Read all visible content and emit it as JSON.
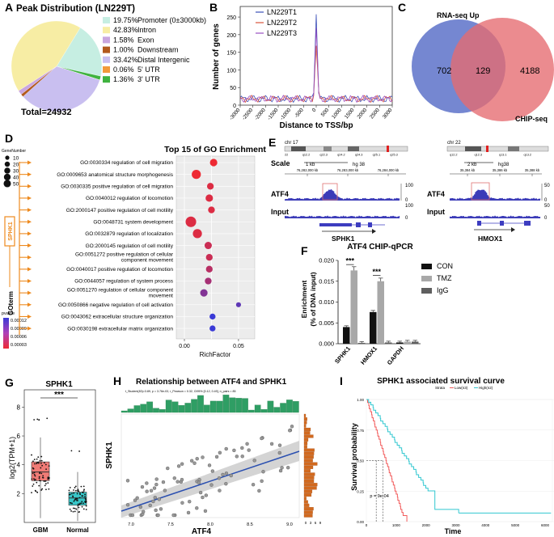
{
  "panels": {
    "A": "A",
    "B": "B",
    "C": "C",
    "D": "D",
    "E": "E",
    "F": "F",
    "G": "G",
    "H": "H",
    "I": "I"
  },
  "A": {
    "title": "Peak Distribution (LN229T)",
    "total": "Total=24932",
    "legend": [
      {
        "pct": "19.75%",
        "label": "Promoter (0±3000kb)",
        "color": "#c6eee2",
        "value": 19.75
      },
      {
        "pct": "42.83%",
        "label": "Intron",
        "color": "#f7eda4",
        "value": 42.83
      },
      {
        "pct": "1.58%",
        "label": "Exon",
        "color": "#c9a6df",
        "value": 1.58
      },
      {
        "pct": "1.00%",
        "label": "Downstream",
        "color": "#b25a1e",
        "value": 1.0
      },
      {
        "pct": "33.42%",
        "label": "Distal Intergenic",
        "color": "#c9bff0",
        "value": 33.42
      },
      {
        "pct": "0.06%",
        "label": "5' UTR",
        "color": "#f29a3a",
        "value": 0.06
      },
      {
        "pct": "1.36%",
        "label": "3' UTR",
        "color": "#3fb33f",
        "value": 1.36
      }
    ]
  },
  "B": {
    "ylabel": "Number of genes",
    "xlabel": "Distance to TSS/bp",
    "yticks": [
      "0",
      "50",
      "100",
      "150",
      "200",
      "250"
    ],
    "xticks": [
      "-3000",
      "-2500",
      "-2000",
      "-1500",
      "-1000",
      "-500",
      "0",
      "500",
      "1000",
      "1500",
      "2000",
      "2500",
      "3000"
    ],
    "legend": [
      {
        "label": "LN229T1",
        "color": "#3b4fb8"
      },
      {
        "label": "LN229T2",
        "color": "#d9533b"
      },
      {
        "label": "LN229T3",
        "color": "#9a4fc0"
      }
    ]
  },
  "C": {
    "label_left": "RNA-seq Up",
    "label_right": "CHIP-seq",
    "left_only": "702",
    "overlap": "129",
    "right_only": "4188",
    "left_color": "#5d72c9",
    "right_color": "#e66a6f"
  },
  "D": {
    "title": "Top 15 of GO Enrichment",
    "size_legend_title": "GeneNumber",
    "size_legend": [
      "10",
      "20",
      "30",
      "40",
      "50"
    ],
    "pvalue_title": "pvalue",
    "pvalue_ticks": [
      "0.00012",
      "0.00009",
      "0.00006",
      "0.00003"
    ],
    "xlabel": "RichFactor",
    "xticks": [
      "0.00",
      "0.05"
    ],
    "gene_box": "SPHK1",
    "goterm_label": "GOterm",
    "terms": [
      {
        "label": "GO:0030334 regulation of cell migration",
        "rich": 0.027,
        "genes": 22,
        "p": 2e-05
      },
      {
        "label": "GO:0009653 anatomical structure morphogenesis",
        "rich": 0.011,
        "genes": 38,
        "p": 2e-05
      },
      {
        "label": "GO:0030335 positive regulation of cell migration",
        "rich": 0.024,
        "genes": 17,
        "p": 3e-05
      },
      {
        "label": "GO:0040012 regulation of locomotion",
        "rich": 0.023,
        "genes": 22,
        "p": 3e-05
      },
      {
        "label": "GO:2000147 positive regulation of cell motility",
        "rich": 0.025,
        "genes": 17,
        "p": 3e-05
      },
      {
        "label": "GO:0048731 system development",
        "rich": 0.006,
        "genes": 55,
        "p": 3e-05
      },
      {
        "label": "GO:0032879 regulation of localization",
        "rich": 0.012,
        "genes": 38,
        "p": 3e-05
      },
      {
        "label": "GO:2000145 regulation of cell motility",
        "rich": 0.022,
        "genes": 21,
        "p": 4e-05
      },
      {
        "label": "GO:0051272 positive regulation of cellular component movement",
        "rich": 0.023,
        "genes": 17,
        "p": 4e-05
      },
      {
        "label": "GO:0040017 positive regulation of locomotion",
        "rich": 0.023,
        "genes": 17,
        "p": 5e-05
      },
      {
        "label": "GO:0044057 regulation of system process",
        "rich": 0.022,
        "genes": 17,
        "p": 6e-05
      },
      {
        "label": "GO:0051270 regulation of cellular component movement",
        "rich": 0.018,
        "genes": 22,
        "p": 8e-05
      },
      {
        "label": "GO:0050866 negative regulation of cell activation",
        "rich": 0.05,
        "genes": 7,
        "p": 0.0001
      },
      {
        "label": "GO:0043062 extracellular structure organization",
        "rich": 0.026,
        "genes": 12,
        "p": 0.00012
      },
      {
        "label": "GO:0030198 extracellular matrix organization",
        "rich": 0.026,
        "genes": 12,
        "p": 0.00012
      }
    ]
  },
  "E": {
    "left": {
      "chr": "chr 17",
      "bands": [
        "22",
        "q12.2",
        "q22.3",
        "q24.2",
        "q24.3",
        "q25.1",
        "q25.3"
      ],
      "scale_label": "Scale",
      "scale_bar": "1 kb",
      "genome": "hg 38",
      "coords": [
        "76,282,000 kb",
        "76,283,000 kb",
        "76,284,000 kb"
      ],
      "track1": "ATF4",
      "track2": "Input",
      "t1max": "100",
      "t1min": "0",
      "t2max": "100",
      "t2min": "0",
      "gene": "SPHK1"
    },
    "right": {
      "chr": "chr 22",
      "bands": [
        "q12.2",
        "q12.3",
        "q13.1",
        "q13.2"
      ],
      "scale_bar": "2 kb",
      "genome": "hg38",
      "coords": [
        "35,384 kb",
        "35,386 kb",
        "35,388 kb"
      ],
      "track1": "ATF4",
      "track2": "Input",
      "t1max": "50",
      "t1min": "0",
      "t2max": "50",
      "t2min": "0",
      "gene": "HMOX1"
    }
  },
  "F": {
    "title": "ATF4 CHIP-qPCR",
    "ylabel1": "Enrichment",
    "ylabel2": "(% of DNA input)",
    "yticks": [
      "0.000",
      "0.005",
      "0.010",
      "0.015",
      "0.020"
    ],
    "categories": [
      "SPHK1",
      "HMOX1",
      "GAPDH"
    ],
    "legend": [
      {
        "label": "CON",
        "color": "#111111"
      },
      {
        "label": "TMZ",
        "color": "#a8a8a8"
      },
      {
        "label": "IgG",
        "color": "#5f5f5f"
      }
    ],
    "sig": "***",
    "chart_data": {
      "type": "bar",
      "categories": [
        "SPHK1",
        "HMOX1",
        "GAPDH"
      ],
      "series": [
        {
          "name": "CON",
          "values": [
            0.004,
            0.0076,
            0.0003
          ]
        },
        {
          "name": "TMZ",
          "values": [
            0.0176,
            0.015,
            0.0005
          ]
        },
        {
          "name": "IgG",
          "values": [
            0.0002,
            0.0003,
            0.0005
          ]
        }
      ],
      "ylim": [
        0,
        0.02
      ]
    }
  },
  "G": {
    "title": "SPHK1",
    "ylabel": "log2(TPM+1)",
    "yticks": [
      "2",
      "4",
      "6",
      "8"
    ],
    "groups": [
      {
        "label": "GBM",
        "color": "#f07b76",
        "q1": 2.9,
        "med": 3.5,
        "q3": 4.2,
        "lo": 0.3,
        "hi": 5.9
      },
      {
        "label": "Normal",
        "color": "#38c7c9",
        "q1": 1.2,
        "med": 1.7,
        "q3": 2.1,
        "lo": 0.1,
        "hi": 3.5
      }
    ],
    "sig": "***"
  },
  "H": {
    "title": "Relationship between ATF4 and SPHK1",
    "stats": "t_Student(83)=3.89, p = 3.76e-03, r_Pearson = 0.32, CI95% [0.12, 0.49], n_pairs = 85",
    "xlabel": "ATF4",
    "ylabel": "SPHK1",
    "xticks": [
      "7.0",
      "7.5",
      "8.0",
      "8.5",
      "9.0"
    ],
    "hist_ticks": [
      "0",
      "3",
      "6",
      "9"
    ]
  },
  "I": {
    "title": "SPHK1 associated survival curve",
    "ylabel": "Survival probability",
    "xlabel": "Time",
    "strata_title": "Strata",
    "strata": [
      {
        "label": "Low(n3)",
        "color": "#f25b5b"
      },
      {
        "label": "High(n2)",
        "color": "#31c7d0"
      }
    ],
    "pval": "p = 9e-04",
    "yticks": [
      "0.00",
      "0.25",
      "0.50",
      "0.75",
      "1.00"
    ],
    "xticks": [
      "0",
      "1000",
      "2000",
      "3000",
      "4000",
      "5000",
      "6000"
    ]
  }
}
